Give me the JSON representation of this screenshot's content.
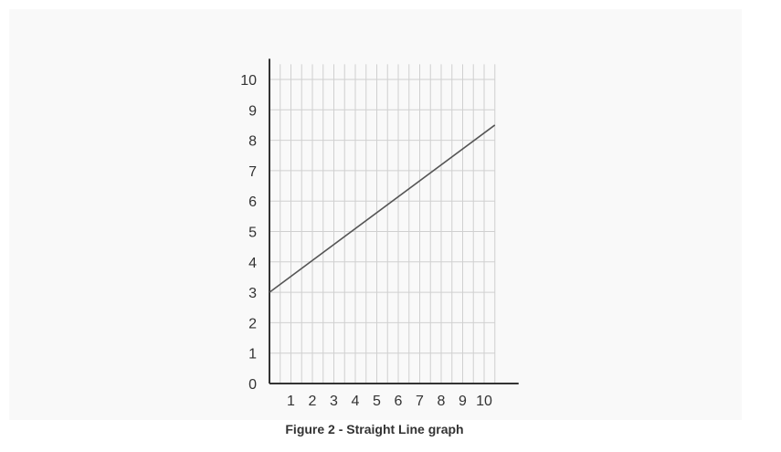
{
  "caption": "Figure 2 - Straight Line graph",
  "chart_data": {
    "type": "line",
    "title": "",
    "xlabel": "",
    "ylabel": "",
    "x_ticks": [
      "1",
      "2",
      "3",
      "4",
      "5",
      "6",
      "7",
      "8",
      "9",
      "10"
    ],
    "y_ticks": [
      "0",
      "1",
      "2",
      "3",
      "4",
      "5",
      "6",
      "7",
      "8",
      "9",
      "10"
    ],
    "xlim": [
      0,
      10.5
    ],
    "ylim": [
      0,
      10.5
    ],
    "grid": true,
    "series": [
      {
        "x": [
          0,
          10.5
        ],
        "y": [
          3,
          8.5
        ]
      }
    ],
    "colors": {
      "line": "#555555",
      "grid": "#d0d0d0",
      "axis": "#333333",
      "text": "#333333"
    }
  }
}
